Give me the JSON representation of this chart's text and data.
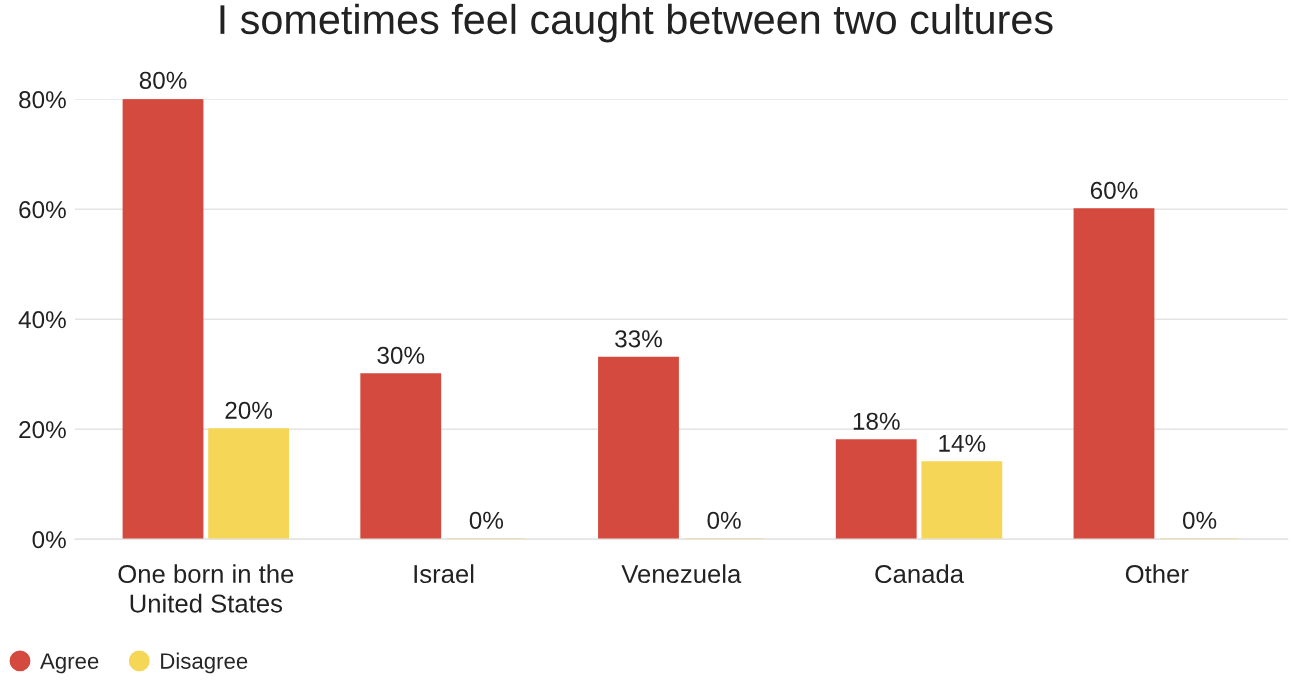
{
  "chart_data": {
    "type": "bar",
    "title": "I sometimes feel caught between two cultures",
    "categories": [
      "One born in the\nUnited States",
      "Israel",
      "Venezuela",
      "Canada",
      "Other"
    ],
    "series": [
      {
        "name": "Agree",
        "color": "#d44a3e",
        "values": [
          80,
          30,
          33,
          18,
          60
        ],
        "value_labels": [
          "80%",
          "30%",
          "33%",
          "18%",
          "60%"
        ]
      },
      {
        "name": "Disagree",
        "color": "#f5d657",
        "values": [
          20,
          0,
          0,
          14,
          0
        ],
        "value_labels": [
          "20%",
          "0%",
          "0%",
          "14%",
          "0%"
        ]
      }
    ],
    "ylim": [
      0,
      80
    ],
    "yticks": [
      {
        "value": 0,
        "label": "0%"
      },
      {
        "value": 20,
        "label": "20%"
      },
      {
        "value": 40,
        "label": "40%"
      },
      {
        "value": 60,
        "label": "60%"
      },
      {
        "value": 80,
        "label": "80%"
      }
    ],
    "grid": "y",
    "legend": "bottom left"
  }
}
